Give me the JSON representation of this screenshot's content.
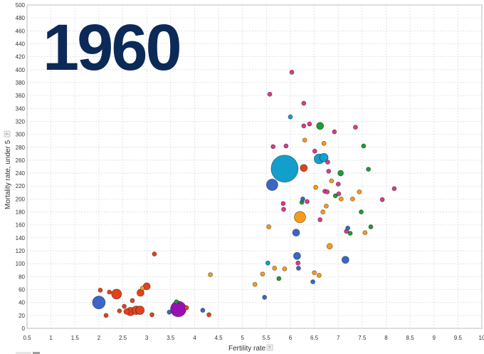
{
  "chart_data": {
    "type": "scatter",
    "year_label": "1960",
    "xlabel": "Fertility rate",
    "ylabel": "Mortality rate, under 5",
    "help_badge": "?",
    "xlim": [
      0.5,
      10
    ],
    "ylim": [
      0,
      500
    ],
    "x_ticks": [
      0.5,
      1,
      1.5,
      2,
      2.5,
      3,
      3.5,
      4,
      4.5,
      5,
      5.5,
      6,
      6.5,
      7,
      7.5,
      8,
      8.5,
      9,
      9.5,
      10
    ],
    "x_tick_labels": [
      "0.5",
      "1",
      "1.5",
      "2",
      "2.5",
      "3",
      "3.5",
      "4",
      "4.5",
      "5",
      "5.5",
      "6",
      "6.5",
      "7",
      "7.5",
      "8",
      "8.5",
      "9",
      "9.5",
      "10"
    ],
    "y_ticks": [
      0,
      20,
      40,
      60,
      80,
      100,
      120,
      140,
      160,
      180,
      200,
      220,
      240,
      260,
      280,
      300,
      320,
      340,
      360,
      380,
      400,
      420,
      440,
      460,
      480,
      500
    ],
    "y_tick_labels": [
      "0",
      "20",
      "40",
      "60",
      "80",
      "100",
      "120",
      "140",
      "160",
      "180",
      "200",
      "220",
      "240",
      "260",
      "280",
      "300",
      "320",
      "340",
      "360",
      "380",
      "400",
      "420",
      "440",
      "460",
      "480",
      "500"
    ],
    "grid": true,
    "colors": {
      "red": "#e0431c",
      "blue": "#3a66c8",
      "cyan": "#139fcc",
      "pink": "#d63d86",
      "orange": "#f59b1d",
      "green": "#1e9c34",
      "purple": "#9a0fb3"
    },
    "points": [
      {
        "x": 2.0,
        "y": 40,
        "size": 9,
        "color": "blue"
      },
      {
        "x": 2.03,
        "y": 59,
        "size": 3,
        "color": "red"
      },
      {
        "x": 2.15,
        "y": 20,
        "size": 3,
        "color": "red"
      },
      {
        "x": 2.22,
        "y": 56,
        "size": 3,
        "color": "red"
      },
      {
        "x": 2.37,
        "y": 53,
        "size": 7,
        "color": "red"
      },
      {
        "x": 2.43,
        "y": 27,
        "size": 3,
        "color": "red"
      },
      {
        "x": 2.53,
        "y": 34,
        "size": 3,
        "color": "red"
      },
      {
        "x": 2.58,
        "y": 26,
        "size": 4,
        "color": "red"
      },
      {
        "x": 2.66,
        "y": 26,
        "size": 6,
        "color": "red"
      },
      {
        "x": 2.7,
        "y": 43,
        "size": 3,
        "color": "red"
      },
      {
        "x": 2.78,
        "y": 28,
        "size": 6,
        "color": "red"
      },
      {
        "x": 2.86,
        "y": 28,
        "size": 6,
        "color": "red"
      },
      {
        "x": 2.87,
        "y": 55,
        "size": 5,
        "color": "red"
      },
      {
        "x": 2.91,
        "y": 62,
        "size": 3,
        "color": "orange"
      },
      {
        "x": 3.0,
        "y": 65,
        "size": 5,
        "color": "red"
      },
      {
        "x": 3.11,
        "y": 21,
        "size": 3,
        "color": "red"
      },
      {
        "x": 3.16,
        "y": 115,
        "size": 3,
        "color": "red"
      },
      {
        "x": 3.47,
        "y": 25,
        "size": 3,
        "color": "blue"
      },
      {
        "x": 3.62,
        "y": 41,
        "size": 3,
        "color": "green"
      },
      {
        "x": 3.66,
        "y": 30,
        "size": 11,
        "color": "purple"
      },
      {
        "x": 3.83,
        "y": 32,
        "size": 3,
        "color": "red"
      },
      {
        "x": 4.17,
        "y": 28,
        "size": 3,
        "color": "blue"
      },
      {
        "x": 4.3,
        "y": 21,
        "size": 3,
        "color": "red"
      },
      {
        "x": 4.33,
        "y": 83,
        "size": 3,
        "color": "orange"
      },
      {
        "x": 5.26,
        "y": 68,
        "size": 3,
        "color": "orange"
      },
      {
        "x": 5.42,
        "y": 84,
        "size": 3,
        "color": "orange"
      },
      {
        "x": 5.46,
        "y": 48,
        "size": 3,
        "color": "blue"
      },
      {
        "x": 5.53,
        "y": 101,
        "size": 3,
        "color": "cyan"
      },
      {
        "x": 5.55,
        "y": 157,
        "size": 3,
        "color": "orange"
      },
      {
        "x": 5.57,
        "y": 362,
        "size": 3,
        "color": "pink"
      },
      {
        "x": 5.62,
        "y": 222,
        "size": 8,
        "color": "blue"
      },
      {
        "x": 5.64,
        "y": 281,
        "size": 3,
        "color": "pink"
      },
      {
        "x": 5.67,
        "y": 93,
        "size": 3,
        "color": "orange"
      },
      {
        "x": 5.76,
        "y": 77,
        "size": 3,
        "color": "green"
      },
      {
        "x": 5.85,
        "y": 193,
        "size": 3,
        "color": "pink"
      },
      {
        "x": 5.86,
        "y": 184,
        "size": 3,
        "color": "pink"
      },
      {
        "x": 5.88,
        "y": 92,
        "size": 3,
        "color": "orange"
      },
      {
        "x": 5.88,
        "y": 247,
        "size": 19,
        "color": "cyan"
      },
      {
        "x": 5.91,
        "y": 282,
        "size": 3,
        "color": "pink"
      },
      {
        "x": 6.0,
        "y": 327,
        "size": 3,
        "color": "cyan"
      },
      {
        "x": 6.03,
        "y": 396,
        "size": 3,
        "color": "pink"
      },
      {
        "x": 6.12,
        "y": 148,
        "size": 5,
        "color": "blue"
      },
      {
        "x": 6.14,
        "y": 112,
        "size": 5,
        "color": "blue"
      },
      {
        "x": 6.16,
        "y": 101,
        "size": 3,
        "color": "pink"
      },
      {
        "x": 6.17,
        "y": 93,
        "size": 3,
        "color": "blue"
      },
      {
        "x": 6.2,
        "y": 172,
        "size": 8,
        "color": "orange"
      },
      {
        "x": 6.24,
        "y": 195,
        "size": 3,
        "color": "green"
      },
      {
        "x": 6.26,
        "y": 200,
        "size": 3,
        "color": "blue"
      },
      {
        "x": 6.28,
        "y": 248,
        "size": 5,
        "color": "red"
      },
      {
        "x": 6.28,
        "y": 348,
        "size": 3,
        "color": "pink"
      },
      {
        "x": 6.3,
        "y": 291,
        "size": 3,
        "color": "orange"
      },
      {
        "x": 6.28,
        "y": 313,
        "size": 3,
        "color": "pink"
      },
      {
        "x": 6.35,
        "y": 196,
        "size": 3,
        "color": "pink"
      },
      {
        "x": 6.4,
        "y": 316,
        "size": 3,
        "color": "pink"
      },
      {
        "x": 6.47,
        "y": 72,
        "size": 3,
        "color": "blue"
      },
      {
        "x": 6.5,
        "y": 86,
        "size": 3,
        "color": "orange"
      },
      {
        "x": 6.51,
        "y": 274,
        "size": 3,
        "color": "pink"
      },
      {
        "x": 6.53,
        "y": 218,
        "size": 3,
        "color": "orange"
      },
      {
        "x": 6.6,
        "y": 82,
        "size": 3,
        "color": "orange"
      },
      {
        "x": 6.62,
        "y": 168,
        "size": 3,
        "color": "pink"
      },
      {
        "x": 6.6,
        "y": 262,
        "size": 7,
        "color": "cyan"
      },
      {
        "x": 6.62,
        "y": 313,
        "size": 5,
        "color": "green"
      },
      {
        "x": 6.68,
        "y": 180,
        "size": 3,
        "color": "orange"
      },
      {
        "x": 6.7,
        "y": 286,
        "size": 3,
        "color": "orange"
      },
      {
        "x": 6.7,
        "y": 264,
        "size": 6,
        "color": "cyan"
      },
      {
        "x": 6.72,
        "y": 212,
        "size": 3,
        "color": "pink"
      },
      {
        "x": 6.75,
        "y": 189,
        "size": 3,
        "color": "orange"
      },
      {
        "x": 6.77,
        "y": 211,
        "size": 3,
        "color": "pink"
      },
      {
        "x": 6.78,
        "y": 257,
        "size": 3,
        "color": "pink"
      },
      {
        "x": 6.8,
        "y": 243,
        "size": 3,
        "color": "pink"
      },
      {
        "x": 6.82,
        "y": 127,
        "size": 4,
        "color": "orange"
      },
      {
        "x": 6.86,
        "y": 228,
        "size": 3,
        "color": "orange"
      },
      {
        "x": 6.92,
        "y": 304,
        "size": 3,
        "color": "pink"
      },
      {
        "x": 6.94,
        "y": 205,
        "size": 3,
        "color": "green"
      },
      {
        "x": 7.0,
        "y": 223,
        "size": 3,
        "color": "pink"
      },
      {
        "x": 7.01,
        "y": 208,
        "size": 3,
        "color": "pink"
      },
      {
        "x": 7.05,
        "y": 240,
        "size": 4,
        "color": "green"
      },
      {
        "x": 7.06,
        "y": 200,
        "size": 3,
        "color": "orange"
      },
      {
        "x": 7.15,
        "y": 106,
        "size": 5,
        "color": "blue"
      },
      {
        "x": 7.17,
        "y": 150,
        "size": 3,
        "color": "pink"
      },
      {
        "x": 7.2,
        "y": 155,
        "size": 3,
        "color": "blue"
      },
      {
        "x": 7.25,
        "y": 147,
        "size": 3,
        "color": "green"
      },
      {
        "x": 7.3,
        "y": 200,
        "size": 3,
        "color": "orange"
      },
      {
        "x": 7.36,
        "y": 311,
        "size": 3,
        "color": "pink"
      },
      {
        "x": 7.44,
        "y": 211,
        "size": 3,
        "color": "orange"
      },
      {
        "x": 7.48,
        "y": 180,
        "size": 3,
        "color": "green"
      },
      {
        "x": 7.53,
        "y": 282,
        "size": 3,
        "color": "green"
      },
      {
        "x": 7.56,
        "y": 148,
        "size": 3,
        "color": "orange"
      },
      {
        "x": 7.63,
        "y": 246,
        "size": 3,
        "color": "green"
      },
      {
        "x": 7.68,
        "y": 157,
        "size": 3,
        "color": "green"
      },
      {
        "x": 7.92,
        "y": 199,
        "size": 3,
        "color": "pink"
      },
      {
        "x": 8.17,
        "y": 216,
        "size": 3,
        "color": "pink"
      }
    ]
  }
}
